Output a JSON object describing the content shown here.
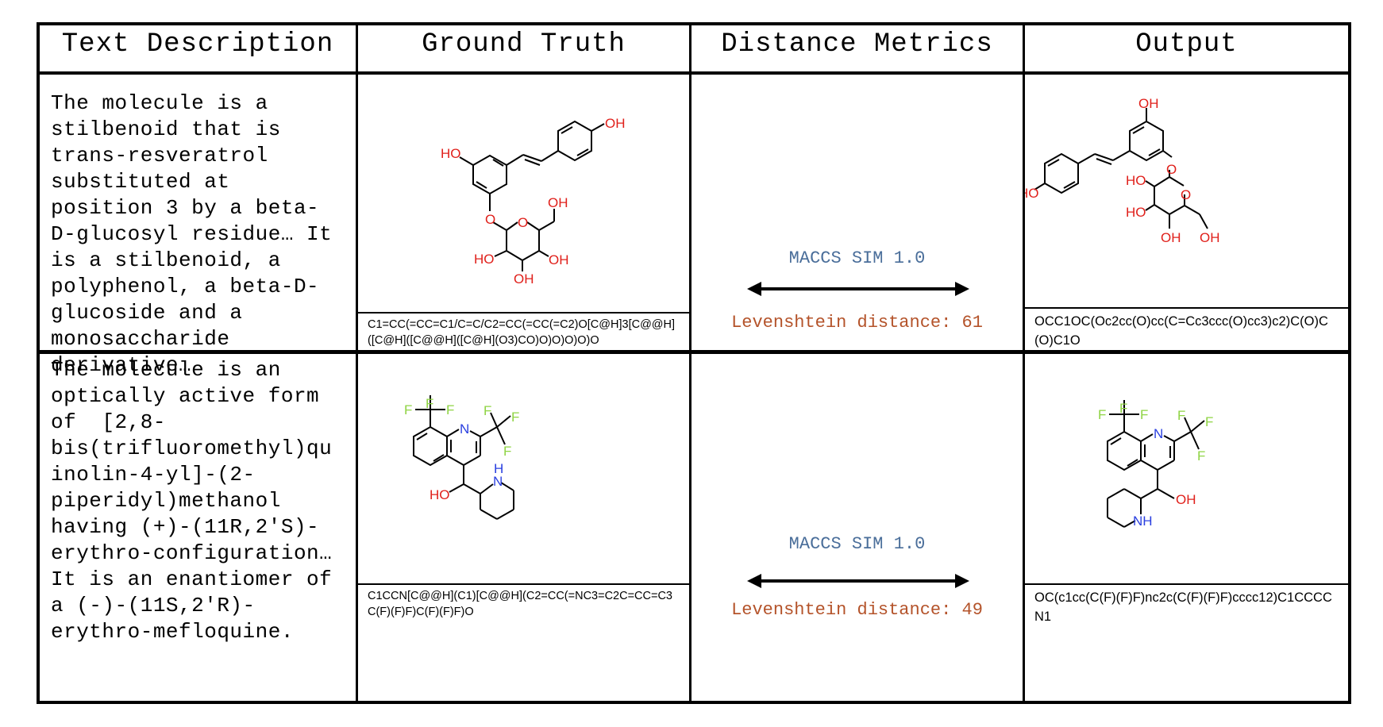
{
  "headers": [
    "Text Description",
    "Ground Truth",
    "Distance Metrics",
    "Output"
  ],
  "rows": [
    {
      "description": "The molecule is a\nstilbenoid that is\ntrans-resveratrol\nsubstituted at\nposition 3 by a beta-\nD-glucosyl residue… It\nis a stilbenoid, a\npolyphenol, a beta-D-\nglucoside and a\nmonosaccharide\nderivative…",
      "ground_truth_smiles": "C1=CC(=CC=C1/C=C/C2=CC(=CC(=C2)O[C@H]3[C@@H]([C@H]([C@@H]([C@H](O3)CO)O)O)O)O)O",
      "metric_sim": "MACCS SIM 1.0",
      "metric_lev": "Levenshtein distance: 61",
      "output_smiles": "OCC1OC(Oc2cc(O)cc(C=Cc3ccc(O)cc3)c2)C(O)C(O)C1O"
    },
    {
      "description": "The molecule is an\noptically active form\nof  [2,8-\nbis(trifluoromethyl)qu\ninolin-4-yl]-(2-\npiperidyl)methanol\nhaving (+)-(11R,2'S)-\nerythro-configuration…\nIt is an enantiomer of\na (-)-(11S,2'R)-\nerythro-mefloquine.",
      "ground_truth_smiles": "C1CCN[C@@H](C1)[C@@H](C2=CC(=NC3=C2C=CC=C3C(F)(F)F)C(F)(F)F)O",
      "metric_sim": "MACCS SIM 1.0",
      "metric_lev": "Levenshtein distance: 49",
      "output_smiles": "OC(c1cc(C(F)(F)F)nc2c(C(F)(F)F)cccc12)C1CCCCN1"
    }
  ],
  "atom_labels": {
    "oh": "OH",
    "ho": "HO",
    "o": "O",
    "n": "N",
    "nh": "NH",
    "h": "H",
    "f": "F"
  },
  "colors": {
    "oxygen": "#e0201b",
    "nitrogen": "#2a3fe0",
    "fluorine": "#8fd444",
    "sim_text": "#4a6e9a",
    "lev_text": "#b4532a"
  }
}
